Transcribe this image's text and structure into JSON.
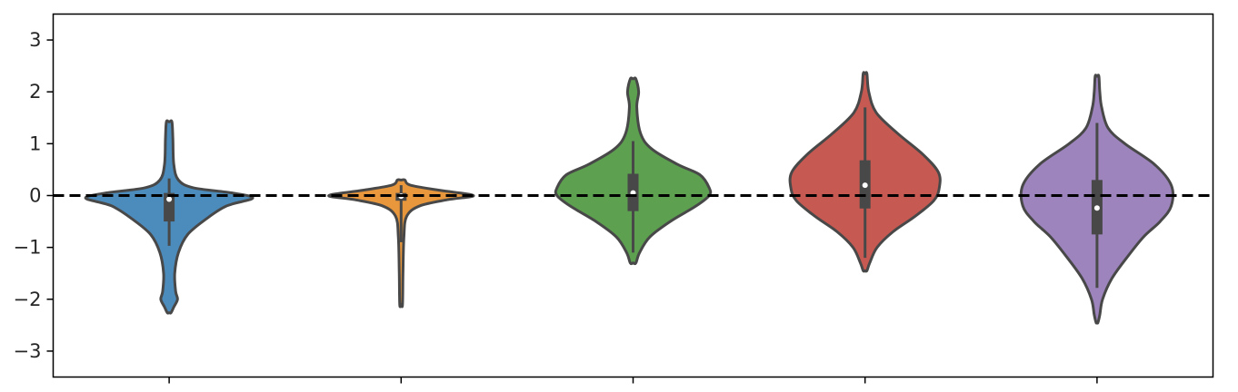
{
  "chart_data": {
    "type": "violin",
    "title": "",
    "xlabel": "",
    "ylabel": "",
    "ylim": [
      -3.5,
      3.5
    ],
    "yticks": [
      3,
      2,
      1,
      0,
      -1,
      -2,
      -3
    ],
    "ytick_labels": [
      "3",
      "2",
      "1",
      "0",
      "−1",
      "−2",
      "−3"
    ],
    "reference_line": {
      "y": 0,
      "style": "dashed",
      "color": "#000000"
    },
    "grid": false,
    "legend": "none",
    "violins": [
      {
        "color": "#4c8cbd",
        "median": -0.07,
        "q1": -0.5,
        "q3": 0.05,
        "whisker_low": -0.97,
        "whisker_high": 0.33,
        "profile": [
          [
            1.42,
            0.03
          ],
          [
            1.1,
            0.04
          ],
          [
            0.6,
            0.05
          ],
          [
            0.3,
            0.1
          ],
          [
            0.15,
            0.26
          ],
          [
            0.05,
            0.68
          ],
          [
            -0.05,
            0.9
          ],
          [
            -0.2,
            0.62
          ],
          [
            -0.45,
            0.4
          ],
          [
            -0.75,
            0.2
          ],
          [
            -1.1,
            0.1
          ],
          [
            -1.5,
            0.06
          ],
          [
            -1.85,
            0.07
          ],
          [
            -2.0,
            0.09
          ],
          [
            -2.15,
            0.05
          ],
          [
            -2.26,
            0.02
          ]
        ]
      },
      {
        "color": "#e8973c",
        "median": -0.01,
        "q1": -0.1,
        "q3": 0.05,
        "whisker_low": -0.9,
        "whisker_high": 0.2,
        "profile": [
          [
            0.3,
            0.04
          ],
          [
            0.2,
            0.1
          ],
          [
            0.1,
            0.42
          ],
          [
            0.0,
            0.78
          ],
          [
            -0.08,
            0.5
          ],
          [
            -0.2,
            0.2
          ],
          [
            -0.4,
            0.06
          ],
          [
            -0.8,
            0.03
          ],
          [
            -1.5,
            0.02
          ],
          [
            -2.1,
            0.015
          ]
        ]
      },
      {
        "color": "#5da050",
        "median": 0.05,
        "q1": -0.3,
        "q3": 0.42,
        "whisker_low": -1.1,
        "whisker_high": 1.05,
        "profile": [
          [
            2.25,
            0.03
          ],
          [
            2.0,
            0.06
          ],
          [
            1.7,
            0.04
          ],
          [
            1.2,
            0.08
          ],
          [
            0.9,
            0.2
          ],
          [
            0.6,
            0.48
          ],
          [
            0.4,
            0.72
          ],
          [
            0.15,
            0.82
          ],
          [
            0.0,
            0.82
          ],
          [
            -0.2,
            0.68
          ],
          [
            -0.5,
            0.4
          ],
          [
            -0.8,
            0.18
          ],
          [
            -1.1,
            0.07
          ],
          [
            -1.3,
            0.03
          ]
        ]
      },
      {
        "color": "#c65a52",
        "median": 0.2,
        "q1": -0.25,
        "q3": 0.68,
        "whisker_low": -1.2,
        "whisker_high": 1.7,
        "profile": [
          [
            2.35,
            0.02
          ],
          [
            2.0,
            0.04
          ],
          [
            1.6,
            0.12
          ],
          [
            1.2,
            0.35
          ],
          [
            0.8,
            0.62
          ],
          [
            0.45,
            0.79
          ],
          [
            0.15,
            0.8
          ],
          [
            -0.1,
            0.74
          ],
          [
            -0.4,
            0.54
          ],
          [
            -0.7,
            0.3
          ],
          [
            -1.0,
            0.13
          ],
          [
            -1.3,
            0.05
          ],
          [
            -1.45,
            0.02
          ]
        ]
      },
      {
        "color": "#9d84bd",
        "median": -0.24,
        "q1": -0.75,
        "q3": 0.3,
        "whisker_low": -1.78,
        "whisker_high": 1.4,
        "profile": [
          [
            2.3,
            0.02
          ],
          [
            2.0,
            0.03
          ],
          [
            1.7,
            0.05
          ],
          [
            1.3,
            0.12
          ],
          [
            1.0,
            0.3
          ],
          [
            0.6,
            0.62
          ],
          [
            0.2,
            0.8
          ],
          [
            -0.2,
            0.8
          ],
          [
            -0.5,
            0.68
          ],
          [
            -0.8,
            0.5
          ],
          [
            -1.2,
            0.32
          ],
          [
            -1.6,
            0.16
          ],
          [
            -2.0,
            0.06
          ],
          [
            -2.3,
            0.03
          ],
          [
            -2.45,
            0.01
          ]
        ]
      }
    ]
  }
}
